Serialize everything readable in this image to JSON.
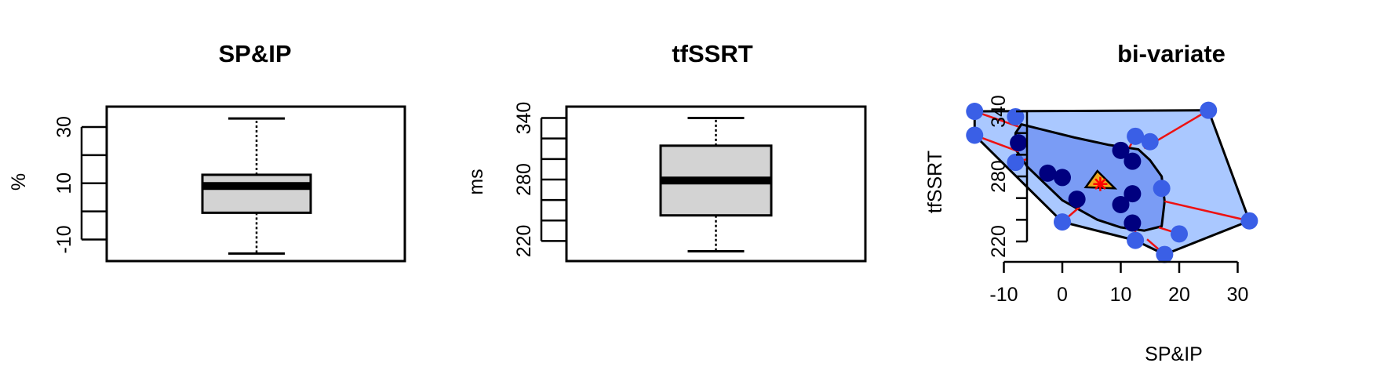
{
  "colors": {
    "box_fill": "#d3d3d3",
    "outer_hull": "#aac8ff",
    "inner_hull": "#7a9cf5",
    "outer_points": "#3a5fe6",
    "inner_points": "#00007f",
    "whisker_lines": "#ee1111",
    "median_fill": "#f2a81c",
    "median_star": "#ff0000"
  },
  "chart_data": [
    {
      "type": "box",
      "title": "SP&IP",
      "ylabel": "%",
      "ylim": [
        -16,
        35
      ],
      "yticks": [
        -10,
        0,
        10,
        20,
        30
      ],
      "ytick_labels": [
        "-10",
        "",
        "10",
        "",
        "30"
      ],
      "box": {
        "min": -15,
        "q1": -0.5,
        "median": 9,
        "q3": 13,
        "max": 33
      }
    },
    {
      "type": "box",
      "title": "tfSSRT",
      "ylabel": "ms",
      "ylim": [
        205,
        345
      ],
      "yticks": [
        220,
        240,
        260,
        280,
        300,
        320,
        340
      ],
      "ytick_labels": [
        "220",
        "",
        "",
        "280",
        "",
        "",
        "340"
      ],
      "box": {
        "min": 210,
        "q1": 245,
        "median": 279,
        "q3": 313,
        "max": 340
      }
    },
    {
      "type": "scatter",
      "subtype": "bagplot",
      "title": "bi-variate",
      "xlabel": "SP&IP",
      "ylabel": "tfSSRT",
      "xlim": [
        -15,
        32
      ],
      "ylim": [
        205,
        345
      ],
      "xticks": [
        -10,
        0,
        10,
        20,
        30
      ],
      "xtick_labels": [
        "-10",
        "0",
        "10",
        "20",
        "30"
      ],
      "yticks": [
        220,
        240,
        260,
        280,
        300,
        320,
        340
      ],
      "ytick_labels": [
        "220",
        "",
        "",
        "280",
        "",
        "",
        "340"
      ],
      "center": {
        "x": 6.5,
        "y": 273
      },
      "inner_points": [
        {
          "x": -7.5,
          "y": 311
        },
        {
          "x": -2.5,
          "y": 283
        },
        {
          "x": 0,
          "y": 279
        },
        {
          "x": 2.5,
          "y": 259
        },
        {
          "x": 10,
          "y": 304
        },
        {
          "x": 12,
          "y": 294
        },
        {
          "x": 12,
          "y": 264
        },
        {
          "x": 10,
          "y": 254
        },
        {
          "x": 12,
          "y": 237
        }
      ],
      "outer_points": [
        {
          "x": -15,
          "y": 340
        },
        {
          "x": -15,
          "y": 318
        },
        {
          "x": -8,
          "y": 335
        },
        {
          "x": -8,
          "y": 293
        },
        {
          "x": 0,
          "y": 238
        },
        {
          "x": 12.5,
          "y": 317
        },
        {
          "x": 15,
          "y": 312
        },
        {
          "x": 17,
          "y": 269
        },
        {
          "x": 12.5,
          "y": 221
        },
        {
          "x": 20,
          "y": 227
        },
        {
          "x": 17.5,
          "y": 208
        },
        {
          "x": 25,
          "y": 341
        },
        {
          "x": 32,
          "y": 239
        }
      ],
      "outer_hull": [
        {
          "x": -15,
          "y": 340
        },
        {
          "x": 25,
          "y": 341
        },
        {
          "x": 32,
          "y": 239
        },
        {
          "x": 17.5,
          "y": 208
        },
        {
          "x": 12.5,
          "y": 221
        },
        {
          "x": 0,
          "y": 238
        },
        {
          "x": -15,
          "y": 318
        }
      ],
      "inner_hull": [
        {
          "x": -7,
          "y": 328
        },
        {
          "x": -4,
          "y": 324
        },
        {
          "x": 2,
          "y": 316
        },
        {
          "x": 8,
          "y": 309
        },
        {
          "x": 13,
          "y": 305
        },
        {
          "x": 15,
          "y": 295
        },
        {
          "x": 17,
          "y": 280
        },
        {
          "x": 17.5,
          "y": 257
        },
        {
          "x": 17,
          "y": 234
        },
        {
          "x": 14,
          "y": 230
        },
        {
          "x": 10,
          "y": 233
        },
        {
          "x": 6,
          "y": 240
        },
        {
          "x": 0,
          "y": 258
        },
        {
          "x": -6,
          "y": 289
        },
        {
          "x": -8,
          "y": 305
        },
        {
          "x": -8,
          "y": 320
        }
      ],
      "median_region": [
        {
          "x": 4,
          "y": 270
        },
        {
          "x": 6,
          "y": 285
        },
        {
          "x": 9,
          "y": 269
        }
      ],
      "whiskers": [
        {
          "from": {
            "x": -15,
            "y": 340
          },
          "to": {
            "x": -7.5,
            "y": 326
          }
        },
        {
          "from": {
            "x": -15,
            "y": 318
          },
          "to": {
            "x": -7.5,
            "y": 303
          }
        },
        {
          "from": {
            "x": -8,
            "y": 293
          },
          "to": {
            "x": -6,
            "y": 296
          }
        },
        {
          "from": {
            "x": 0,
            "y": 238
          },
          "to": {
            "x": 3,
            "y": 252
          }
        },
        {
          "from": {
            "x": 12.5,
            "y": 317
          },
          "to": {
            "x": 11.5,
            "y": 307
          }
        },
        {
          "from": {
            "x": 25,
            "y": 341
          },
          "to": {
            "x": 14,
            "y": 306
          }
        },
        {
          "from": {
            "x": 32,
            "y": 239
          },
          "to": {
            "x": 17.5,
            "y": 257
          }
        },
        {
          "from": {
            "x": 20,
            "y": 227
          },
          "to": {
            "x": 16.5,
            "y": 233
          }
        },
        {
          "from": {
            "x": 17.5,
            "y": 208
          },
          "to": {
            "x": 14.5,
            "y": 222
          }
        },
        {
          "from": {
            "x": 12.5,
            "y": 221
          },
          "to": {
            "x": 12.5,
            "y": 232
          }
        }
      ]
    }
  ]
}
